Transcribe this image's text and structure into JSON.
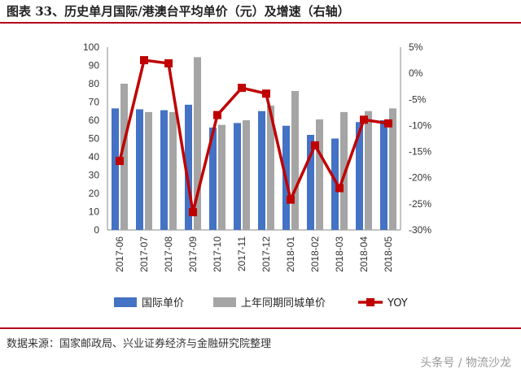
{
  "title": "图表 33、历史单月国际/港澳台平均单价（元）及增速（右轴）",
  "source": "数据来源：国家邮政局、兴业证券经济与金融研究院整理",
  "watermark": "头条号 / 物流沙龙",
  "chart_data": {
    "type": "bar",
    "categories": [
      "2017-06",
      "2017-07",
      "2017-08",
      "2017-09",
      "2017-10",
      "2017-11",
      "2017-12",
      "2018-01",
      "2018-02",
      "2018-03",
      "2018-04",
      "2018-05"
    ],
    "series": [
      {
        "name": "国际单价",
        "type": "bar",
        "axis": "left",
        "color": "#4472c4",
        "values": [
          66.5,
          66,
          65.5,
          68.5,
          56,
          58.5,
          65,
          57,
          52,
          50,
          59,
          60
        ]
      },
      {
        "name": "上年同期同城单价",
        "type": "bar",
        "axis": "left",
        "color": "#a5a5a5",
        "values": [
          80,
          64.5,
          64.5,
          94.5,
          57.5,
          60,
          68,
          76,
          60.5,
          64.5,
          65,
          66.5
        ]
      },
      {
        "name": "YOY",
        "type": "line",
        "axis": "right",
        "color": "#c00000",
        "values": [
          -16.8,
          2.5,
          1.9,
          -26.6,
          -8.0,
          -2.8,
          -3.9,
          -24.2,
          -13.8,
          -22.0,
          -8.9,
          -9.6
        ]
      }
    ],
    "y_left": {
      "min": 0,
      "max": 100,
      "step": 10
    },
    "y_right": {
      "min": -30,
      "max": 5,
      "step": 5,
      "unit": "%"
    },
    "grid": false,
    "legend_position": "bottom"
  }
}
